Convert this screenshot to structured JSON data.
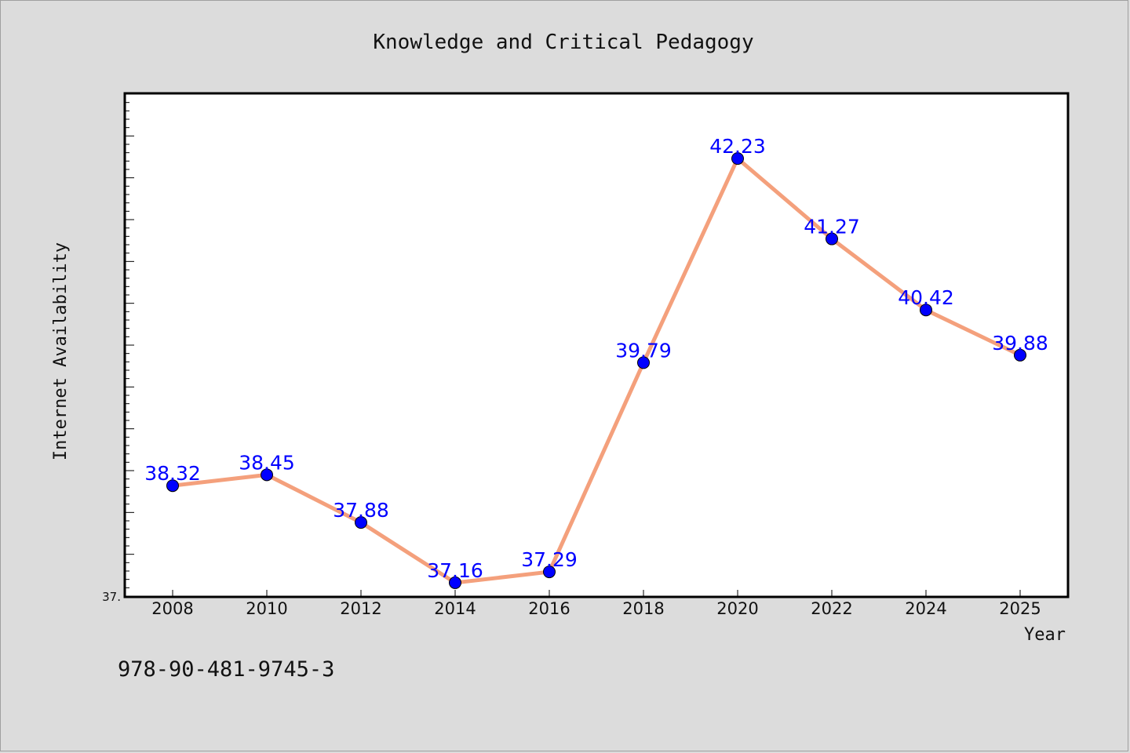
{
  "chart_data": {
    "type": "line",
    "title": "Knowledge and Critical Pedagogy",
    "xlabel": "Year",
    "ylabel": "Internet Availability",
    "x": [
      "2008",
      "2010",
      "2012",
      "2014",
      "2016",
      "2018",
      "2020",
      "2022",
      "2024",
      "2025"
    ],
    "series": [
      {
        "values": [
          38.32,
          38.45,
          37.88,
          37.16,
          37.29,
          39.79,
          42.23,
          41.27,
          40.42,
          39.88
        ],
        "line_color": "#f4a07c",
        "marker_color": "#0000ff"
      }
    ],
    "data_labels": [
      "38.32",
      "38.45",
      "37.88",
      "37.16",
      "37.29",
      "39.79",
      "42.23",
      "41.27",
      "40.42",
      "39.88"
    ],
    "ylim": [
      37.0,
      43.0
    ],
    "ytick_labels": [
      "37."
    ],
    "grid": false,
    "legend": "none"
  },
  "footer": {
    "code": "978-90-481-9745-3"
  },
  "colors": {
    "background": "#dcdcdc",
    "plot_background": "#ffffff",
    "line": "#f4a07c",
    "marker": "#0000ff",
    "data_label": "#0000ff"
  }
}
